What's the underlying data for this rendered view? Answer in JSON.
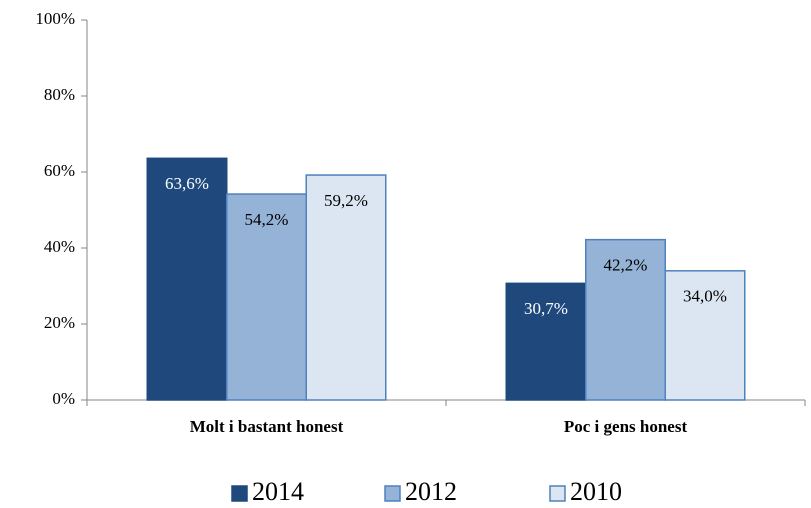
{
  "chart_data": {
    "type": "bar",
    "categories": [
      "Molt i bastant honest",
      "Poc i gens honest"
    ],
    "series": [
      {
        "name": "2014",
        "color": "#1f497d",
        "border": "#1f497d",
        "label_color": "#ffffff",
        "values": [
          63.6,
          30.7
        ],
        "value_labels": [
          "63,6%",
          "30,7%"
        ]
      },
      {
        "name": "2012",
        "color": "#95b3d7",
        "border": "#4f81bd",
        "label_color": "#000000",
        "values": [
          54.2,
          42.2
        ],
        "value_labels": [
          "54,2%",
          "42,2%"
        ]
      },
      {
        "name": "2010",
        "color": "#dce6f2",
        "border": "#4f81bd",
        "label_color": "#000000",
        "values": [
          59.2,
          34.0
        ],
        "value_labels": [
          "59,2%",
          "34,0%"
        ]
      }
    ],
    "ylim": [
      0,
      100
    ],
    "yticks": [
      {
        "value": 0,
        "label": "0%"
      },
      {
        "value": 20,
        "label": "20%"
      },
      {
        "value": 40,
        "label": "40%"
      },
      {
        "value": 60,
        "label": "60%"
      },
      {
        "value": 80,
        "label": "80%"
      },
      {
        "value": 100,
        "label": "100%"
      }
    ],
    "grid": false,
    "legend": "bottom"
  }
}
